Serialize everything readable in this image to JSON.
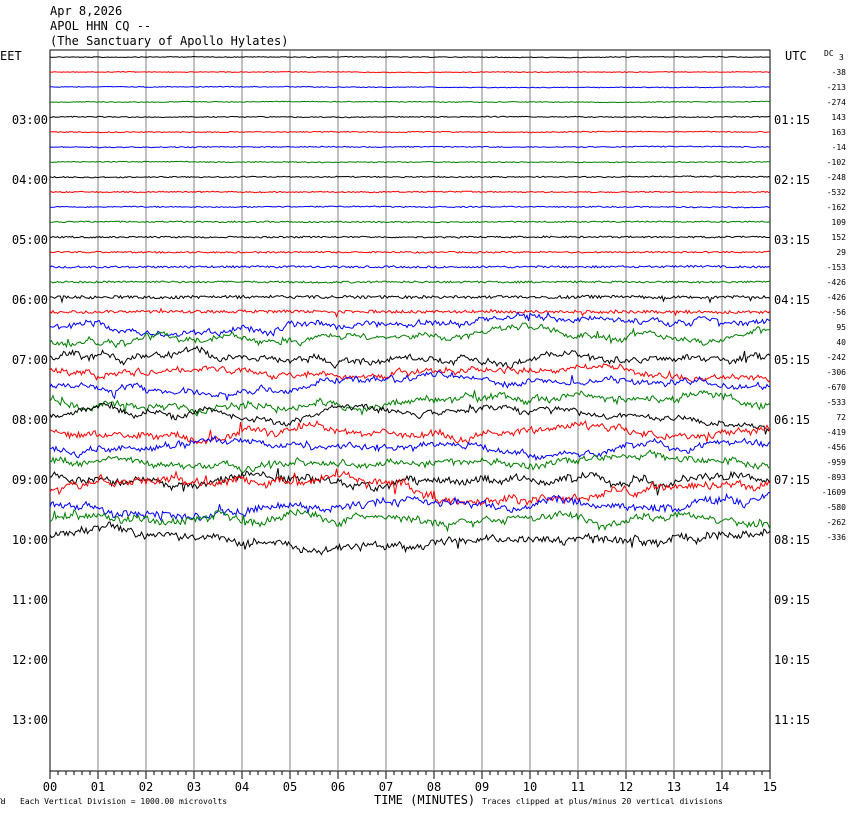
{
  "header": {
    "date": "Apr 8,2026",
    "station": "APOL HHN CQ --",
    "site": "(The Sanctuary of Apollo Hylates)"
  },
  "left_tz": "EET",
  "right_tz": "UTC",
  "dc_label": "DC",
  "footer": {
    "corner": "ꓤ",
    "scale": "Each Vertical Division = 1000.00 microvolts",
    "xlabel": "TIME (MINUTES)",
    "clip": "Traces clipped at plus/minus 20 vertical divisions"
  },
  "chart_data": {
    "type": "line",
    "title": "APOL HHN CQ --",
    "xlabel": "TIME (MINUTES)",
    "xlim": [
      0,
      15
    ],
    "x_ticks": [
      "00",
      "01",
      "02",
      "03",
      "04",
      "05",
      "06",
      "07",
      "08",
      "09",
      "10",
      "11",
      "12",
      "13",
      "14",
      "15"
    ],
    "left_hour_labels": [
      "03:00",
      "04:00",
      "05:00",
      "06:00",
      "07:00",
      "08:00",
      "09:00",
      "10:00",
      "11:00",
      "12:00",
      "13:00"
    ],
    "right_hour_labels": [
      "01:15",
      "02:15",
      "03:15",
      "04:15",
      "05:15",
      "06:15",
      "07:15",
      "08:15",
      "09:15",
      "10:15",
      "11:15"
    ],
    "trace_colors": [
      "#000000",
      "#ff0000",
      "#0000ff",
      "#008000"
    ],
    "dc_offsets": [
      "3",
      "-38",
      "-213",
      "-274",
      "143",
      "163",
      "-14",
      "-102",
      "-248",
      "-532",
      "-162",
      "109",
      "152",
      "29",
      "-153",
      "-426",
      "-426",
      "-56",
      "95",
      "40",
      "-242",
      "-306",
      "-670",
      "-533",
      "72",
      "-419",
      "-456",
      "-959",
      "-893",
      "-1609",
      "-580",
      "-262",
      "-336"
    ],
    "first_trace_dc": "3",
    "trace_activity": [
      0.4,
      0.4,
      0.4,
      0.4,
      0.5,
      0.5,
      0.5,
      0.5,
      0.6,
      0.6,
      0.6,
      0.7,
      0.8,
      0.8,
      1.0,
      1.0,
      1.5,
      1.5,
      2.0,
      2.0,
      2.4,
      2.0,
      2.0,
      2.4,
      2.0,
      2.5,
      2.2,
      2.5,
      3.0,
      3.2,
      3.0,
      3.0,
      3.0
    ]
  }
}
